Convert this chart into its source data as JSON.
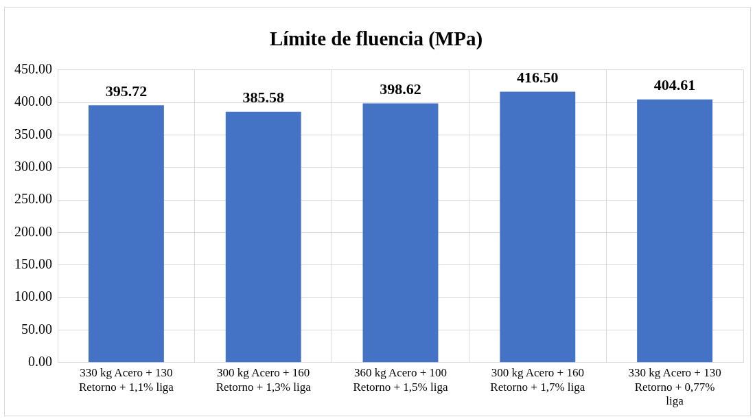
{
  "chart_data": {
    "type": "bar",
    "title": "Límite de fluencia (MPa)",
    "categories": [
      "330 kg Acero + 130 Retorno + 1,1% liga",
      "300 kg Acero + 160 Retorno + 1,3% liga",
      "360 kg Acero + 100 Retorno + 1,5% liga",
      "300 kg Acero + 160 Retorno + 1,7% liga",
      "330 kg Acero + 130 Retorno + 0,77% liga"
    ],
    "values": [
      395.72,
      385.58,
      398.62,
      416.5,
      404.61
    ],
    "value_labels": [
      "395.72",
      "385.58",
      "398.62",
      "416.50",
      "404.61"
    ],
    "color": "#4472c4",
    "ylim": [
      0,
      450
    ],
    "yticks": [
      {
        "value": 0,
        "label": "0.00"
      },
      {
        "value": 50,
        "label": "50.00"
      },
      {
        "value": 100,
        "label": "100.00"
      },
      {
        "value": 150,
        "label": "150.00"
      },
      {
        "value": 200,
        "label": "200.00"
      },
      {
        "value": 250,
        "label": "250.00"
      },
      {
        "value": 300,
        "label": "300.00"
      },
      {
        "value": 350,
        "label": "350.00"
      },
      {
        "value": 400,
        "label": "400.00"
      },
      {
        "value": 450,
        "label": "450.00"
      }
    ],
    "grid": true
  }
}
